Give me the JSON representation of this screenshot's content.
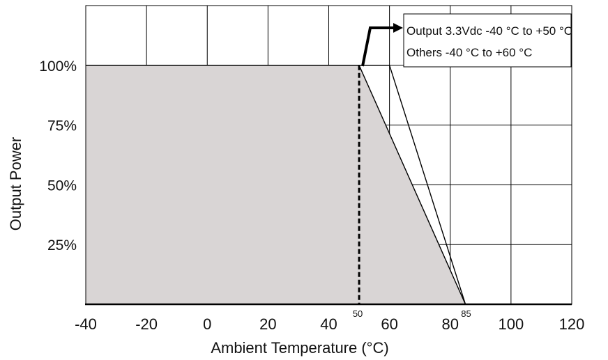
{
  "chart_data": {
    "type": "area",
    "xlabel": "Ambient Temperature (°C)",
    "ylabel": "Output Power",
    "xlim": [
      -40,
      120
    ],
    "ylim": [
      0,
      125
    ],
    "x_ticks": [
      -40,
      -20,
      0,
      20,
      40,
      60,
      80,
      100,
      120
    ],
    "x_tick_labels": [
      "-40",
      "-20",
      "0",
      "20",
      "40",
      "60",
      "80",
      "100",
      "120"
    ],
    "y_ticks": [
      25,
      50,
      75,
      100
    ],
    "y_tick_labels": [
      "25%",
      "50%",
      "75%",
      "100%"
    ],
    "grid": true,
    "series": [
      {
        "name": "Output 3.3Vdc -40 °C to +50 °C",
        "x": [
          -40,
          50,
          85
        ],
        "y": [
          100,
          100,
          0
        ],
        "fill": "#d9d5d5"
      },
      {
        "name": "Others -40 °C to +60 °C",
        "x": [
          -40,
          60,
          85
        ],
        "y": [
          100,
          100,
          0
        ]
      }
    ],
    "markers": [
      {
        "x": 50,
        "label": "50",
        "style": "dashed"
      },
      {
        "x": 85,
        "label": "85"
      }
    ],
    "annotation_lines": [
      "Output 3.3Vdc -40 °C to +50 °C",
      "Others -40 °C to +60 °C"
    ]
  }
}
